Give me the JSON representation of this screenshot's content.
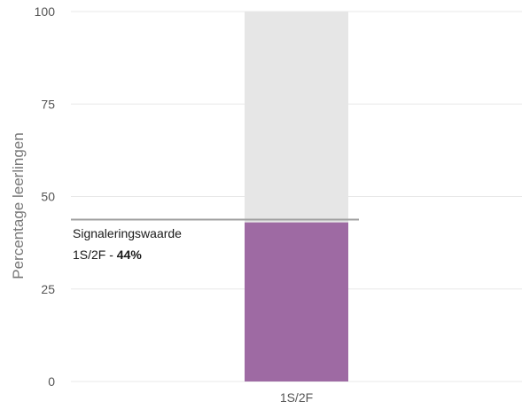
{
  "chart_data": {
    "type": "bar",
    "categories": [
      "1S/2F"
    ],
    "values": [
      43
    ],
    "background_value": 100,
    "ylabel": "Percentage leerlingen",
    "ylim": [
      0,
      100
    ],
    "yticks": [
      0,
      25,
      50,
      75,
      100
    ],
    "grid": true,
    "threshold": {
      "value": 44,
      "label": "Signaleringswaarde",
      "sublabel_prefix": "1S/2F - ",
      "sublabel_value": "44%"
    },
    "colors": {
      "bar": "#9e6aa3",
      "background_bar": "#e6e6e6",
      "threshold_line": "#a0a0a0",
      "grid": "#e8e8e8"
    }
  }
}
